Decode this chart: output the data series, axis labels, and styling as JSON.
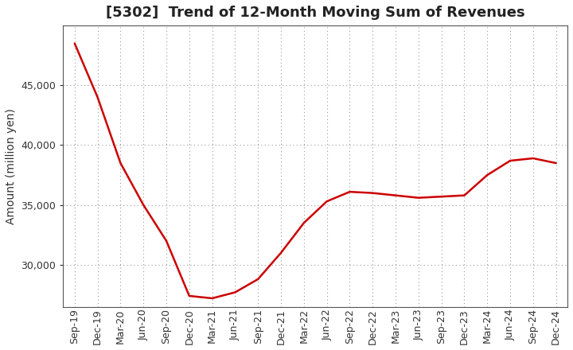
{
  "title": "[5302]  Trend of 12-Month Moving Sum of Revenues",
  "ylabel": "Amount (million yen)",
  "line_color": "#cc0000",
  "background_color": "#ffffff",
  "plot_background_color": "#ffffff",
  "grid_color": "#999999",
  "x_labels": [
    "Sep-19",
    "Dec-19",
    "Mar-20",
    "Jun-20",
    "Sep-20",
    "Dec-20",
    "Mar-21",
    "Jun-21",
    "Sep-21",
    "Dec-21",
    "Mar-22",
    "Jun-22",
    "Sep-22",
    "Dec-22",
    "Mar-23",
    "Jun-23",
    "Sep-23",
    "Dec-23",
    "Mar-24",
    "Jun-24",
    "Sep-24",
    "Dec-24"
  ],
  "y_values": [
    48500,
    44000,
    38500,
    35000,
    32000,
    27400,
    27200,
    27700,
    28800,
    31000,
    33500,
    35300,
    36100,
    36000,
    35800,
    35600,
    35700,
    35800,
    37500,
    38700,
    38900,
    38500
  ],
  "ylim_min": 26500,
  "ylim_max": 50000,
  "yticks": [
    30000,
    35000,
    40000,
    45000
  ],
  "title_fontsize": 13,
  "axis_fontsize": 10,
  "tick_fontsize": 9
}
